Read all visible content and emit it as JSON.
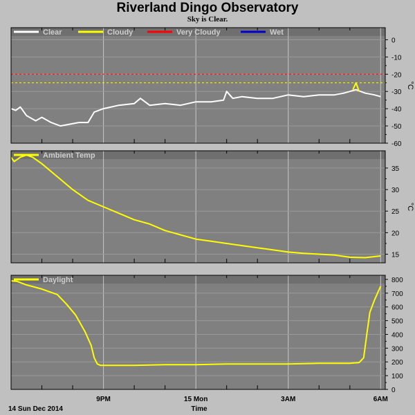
{
  "title": "Riverland Dingo Observatory",
  "subtitle": "Sky is Clear.",
  "footer": {
    "date_label": "14 Sun Dec 2014",
    "axis_label": "Time"
  },
  "x_axis": {
    "ticks": [
      {
        "label": "9PM",
        "hour": 3
      },
      {
        "label": "15 Mon",
        "hour": 6
      },
      {
        "label": "3AM",
        "hour": 9
      },
      {
        "label": "6AM",
        "hour": 12
      }
    ],
    "minor_hours": [
      1,
      2,
      4,
      5,
      7,
      8,
      10,
      11
    ],
    "x_start_time": "6PM",
    "x_end_hour": 12.15
  },
  "colors": {
    "plot_bg": "#808080",
    "grid": "#c8c8c8",
    "white": "#ffffff",
    "yellow": "#ffff00",
    "red": "#ff0000",
    "blue": "#0000cc"
  },
  "chart_data": [
    {
      "type": "line",
      "title": "",
      "ylabel": "°C",
      "ylim": [
        -60,
        7
      ],
      "yticks": [
        0,
        -10,
        -20,
        -30,
        -40,
        -50,
        -60
      ],
      "legend": [
        {
          "name": "Clear",
          "color": "#ffffff"
        },
        {
          "name": "Cloudy",
          "color": "#ffff00"
        },
        {
          "name": "Very Cloudy",
          "color": "#ff0000"
        },
        {
          "name": "Wet",
          "color": "#0000cc"
        }
      ],
      "thresholds": [
        {
          "value": -20,
          "color": "#ff0000"
        },
        {
          "value": -25,
          "color": "#ffff00"
        }
      ],
      "series": [
        {
          "name": "Clear",
          "color": "#ffffff",
          "x": [
            0,
            0.15,
            0.3,
            0.5,
            0.8,
            1.0,
            1.3,
            1.6,
            1.9,
            2.2,
            2.5,
            2.7,
            3.0,
            3.5,
            4.0,
            4.2,
            4.5,
            5.0,
            5.5,
            6.0,
            6.5,
            6.9,
            7.0,
            7.2,
            7.5,
            8.0,
            8.5,
            9.0,
            9.5,
            10.0,
            10.5,
            10.8,
            11.0,
            11.2,
            11.5,
            11.8,
            12.0
          ],
          "y": [
            -40,
            -41,
            -39,
            -44,
            -47,
            -45,
            -48,
            -50,
            -49,
            -48,
            -48,
            -42,
            -40,
            -38,
            -37,
            -34,
            -38,
            -37,
            -38,
            -36,
            -36,
            -35,
            -30,
            -34,
            -33,
            -34,
            -34,
            -32,
            -33,
            -32,
            -32,
            -31,
            -30,
            -29,
            -31,
            -32,
            -33
          ]
        },
        {
          "name": "Cloudy",
          "color": "#ffff00",
          "x": [
            11.1,
            11.2,
            11.3
          ],
          "y": [
            -29,
            -25,
            -30
          ]
        }
      ]
    },
    {
      "type": "line",
      "title": "",
      "ylabel": "°C",
      "ylim": [
        13,
        39
      ],
      "yticks": [
        35,
        30,
        25,
        20,
        15
      ],
      "legend": [
        {
          "name": "Ambient Temp",
          "color": "#ffff00"
        }
      ],
      "series": [
        {
          "name": "Ambient Temp",
          "color": "#ffff00",
          "x": [
            0,
            0.1,
            0.3,
            0.5,
            0.7,
            1.0,
            1.5,
            2.0,
            2.5,
            3.0,
            3.5,
            4.0,
            4.5,
            5.0,
            5.5,
            6.0,
            6.5,
            7.0,
            7.5,
            8.0,
            8.5,
            9.0,
            9.5,
            10.0,
            10.5,
            11.0,
            11.5,
            12.0
          ],
          "y": [
            37.5,
            36.5,
            37.5,
            38,
            37.5,
            36,
            33,
            30,
            27.5,
            26,
            24.5,
            23,
            22,
            20.5,
            19.5,
            18.5,
            18,
            17.5,
            17,
            16.5,
            16,
            15.5,
            15.2,
            15,
            14.8,
            14.3,
            14.2,
            14.6
          ]
        }
      ]
    },
    {
      "type": "line",
      "title": "",
      "ylabel": "",
      "ylim": [
        0,
        830
      ],
      "yticks": [
        800,
        700,
        600,
        500,
        400,
        300,
        200,
        100,
        0
      ],
      "legend": [
        {
          "name": "Daylight",
          "color": "#ffff00"
        }
      ],
      "series": [
        {
          "name": "Daylight",
          "color": "#ffff00",
          "x": [
            0,
            0.2,
            0.5,
            1.0,
            1.5,
            1.8,
            2.1,
            2.4,
            2.6,
            2.7,
            2.8,
            2.9,
            3.0,
            3.5,
            4.0,
            5.0,
            6.0,
            7.0,
            8.0,
            9.0,
            10.0,
            11.0,
            11.3,
            11.45,
            11.55,
            11.65,
            11.8,
            12.0
          ],
          "y": [
            790,
            785,
            760,
            730,
            690,
            620,
            540,
            420,
            320,
            230,
            185,
            175,
            175,
            175,
            175,
            180,
            180,
            185,
            185,
            185,
            190,
            190,
            195,
            230,
            400,
            560,
            650,
            750
          ]
        }
      ]
    }
  ]
}
